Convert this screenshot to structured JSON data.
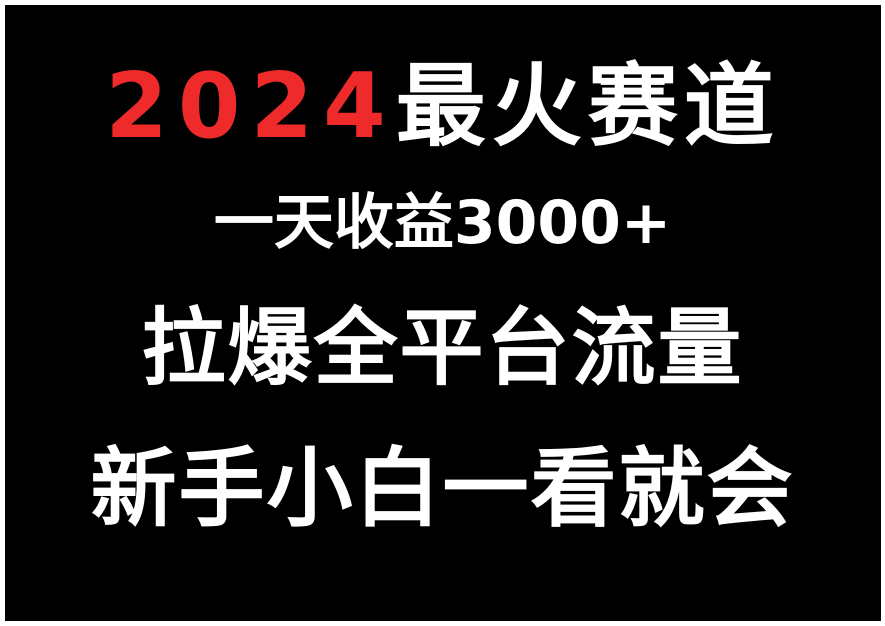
{
  "colors": {
    "background": "#000000",
    "border": "#ffffff",
    "text": "#ffffff",
    "accent": "#ee2a2a"
  },
  "headline": {
    "year": "2024",
    "rest": "最火赛道"
  },
  "line2": "一天收益3000+",
  "line3": "拉爆全平台流量",
  "line4": "新手小白一看就会"
}
